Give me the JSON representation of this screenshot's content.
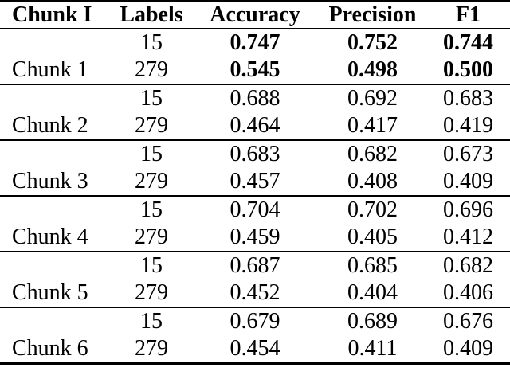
{
  "page": {
    "background": "#ffffff",
    "text_color": "#000000"
  },
  "table": {
    "headers": {
      "chunk": "Chunk I",
      "labels": "Labels",
      "accuracy": "Accuracy",
      "precision": "Precision",
      "f1": "F1"
    },
    "sections": [
      {
        "chunk": "Chunk 1",
        "emphasis": "bold",
        "rows": [
          {
            "labels": "15",
            "accuracy": "0.747",
            "precision": "0.752",
            "f1": "0.744"
          },
          {
            "labels": "279",
            "accuracy": "0.545",
            "precision": "0.498",
            "f1": "0.500"
          }
        ]
      },
      {
        "chunk": "Chunk 2",
        "emphasis": "normal",
        "rows": [
          {
            "labels": "15",
            "accuracy": "0.688",
            "precision": "0.692",
            "f1": "0.683"
          },
          {
            "labels": "279",
            "accuracy": "0.464",
            "precision": "0.417",
            "f1": "0.419"
          }
        ]
      },
      {
        "chunk": "Chunk 3",
        "emphasis": "normal",
        "rows": [
          {
            "labels": "15",
            "accuracy": "0.683",
            "precision": "0.682",
            "f1": "0.673"
          },
          {
            "labels": "279",
            "accuracy": "0.457",
            "precision": "0.408",
            "f1": "0.409"
          }
        ]
      },
      {
        "chunk": "Chunk 4",
        "emphasis": "normal",
        "rows": [
          {
            "labels": "15",
            "accuracy": "0.704",
            "precision": "0.702",
            "f1": "0.696"
          },
          {
            "labels": "279",
            "accuracy": "0.459",
            "precision": "0.405",
            "f1": "0.412"
          }
        ]
      },
      {
        "chunk": "Chunk 5",
        "emphasis": "normal",
        "rows": [
          {
            "labels": "15",
            "accuracy": "0.687",
            "precision": "0.685",
            "f1": "0.682"
          },
          {
            "labels": "279",
            "accuracy": "0.452",
            "precision": "0.404",
            "f1": "0.406"
          }
        ]
      },
      {
        "chunk": "Chunk 6",
        "emphasis": "normal",
        "rows": [
          {
            "labels": "15",
            "accuracy": "0.679",
            "precision": "0.689",
            "f1": "0.676"
          },
          {
            "labels": "279",
            "accuracy": "0.454",
            "precision": "0.411",
            "f1": "0.409"
          }
        ]
      }
    ]
  }
}
